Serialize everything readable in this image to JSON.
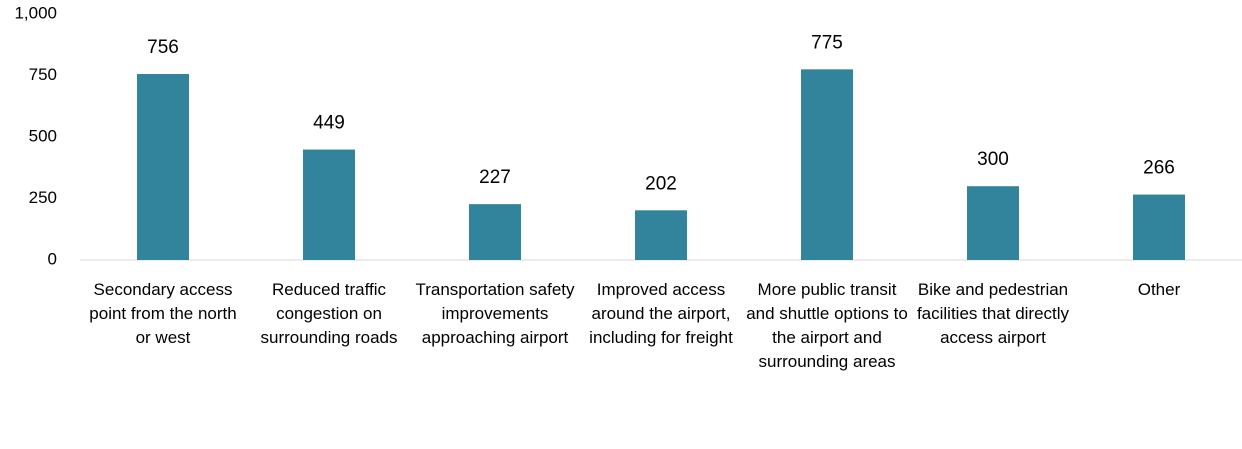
{
  "chart_data": {
    "type": "bar",
    "categories": [
      "Secondary access point from the north or west",
      "Reduced traffic congestion on surrounding roads",
      "Transportation safety improvements approaching airport",
      "Improved access around the airport, including for freight",
      "More public transit and shuttle options to the airport and surrounding areas",
      "Bike and pedestrian facilities that directly access airport",
      "Other"
    ],
    "values": [
      756,
      449,
      227,
      202,
      775,
      300,
      266
    ],
    "color": "#31849b",
    "ylim": [
      0,
      1000
    ],
    "yticks": [
      0,
      250,
      500,
      750,
      {
        "value": 1000,
        "label": "1,000"
      }
    ],
    "grid": false
  }
}
